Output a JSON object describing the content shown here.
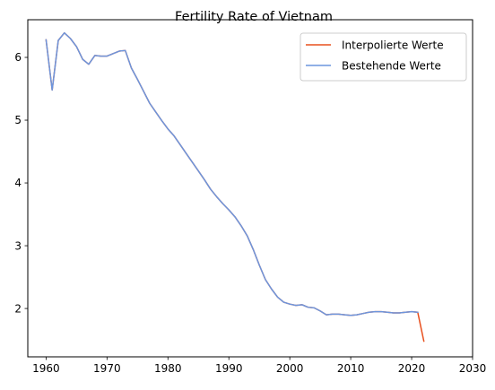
{
  "chart_data": {
    "type": "line",
    "title": "Fertility Rate of Vietnam",
    "xlabel": "",
    "ylabel": "",
    "xlim": [
      1957,
      2030
    ],
    "ylim": [
      1.23,
      6.6
    ],
    "xticks": [
      1960,
      1970,
      1980,
      1990,
      2000,
      2010,
      2020,
      2030
    ],
    "yticks": [
      2,
      3,
      4,
      5,
      6
    ],
    "grid": false,
    "legend_position": "top-right",
    "series": [
      {
        "name": "Interpolierte Werte",
        "color": "#e8501e",
        "x": [
          1960,
          1961,
          1962,
          1963,
          1964,
          1965,
          1966,
          1967,
          1968,
          1969,
          1970,
          1971,
          1972,
          1973,
          1974,
          1975,
          1976,
          1977,
          1978,
          1979,
          1980,
          1981,
          1982,
          1983,
          1984,
          1985,
          1986,
          1987,
          1988,
          1989,
          1990,
          1991,
          1992,
          1993,
          1994,
          1995,
          1996,
          1997,
          1998,
          1999,
          2000,
          2001,
          2002,
          2003,
          2004,
          2005,
          2006,
          2007,
          2008,
          2009,
          2010,
          2011,
          2012,
          2013,
          2014,
          2015,
          2016,
          2017,
          2018,
          2019,
          2020,
          2021,
          2022
        ],
        "y": [
          6.28,
          5.48,
          6.27,
          6.39,
          6.3,
          6.17,
          5.97,
          5.89,
          6.03,
          6.02,
          6.02,
          6.06,
          6.1,
          6.11,
          5.83,
          5.65,
          5.46,
          5.27,
          5.13,
          4.99,
          4.86,
          4.75,
          4.61,
          4.47,
          4.33,
          4.19,
          4.05,
          3.9,
          3.78,
          3.67,
          3.57,
          3.46,
          3.32,
          3.16,
          2.94,
          2.69,
          2.46,
          2.31,
          2.18,
          2.1,
          2.07,
          2.05,
          2.06,
          2.02,
          2.01,
          1.96,
          1.9,
          1.91,
          1.91,
          1.9,
          1.89,
          1.9,
          1.92,
          1.94,
          1.95,
          1.95,
          1.94,
          1.93,
          1.93,
          1.94,
          1.95,
          1.94,
          1.48
        ]
      },
      {
        "name": "Bestehende Werte",
        "color": "#6c96de",
        "x": [
          1960,
          1961,
          1962,
          1963,
          1964,
          1965,
          1966,
          1967,
          1968,
          1969,
          1970,
          1971,
          1972,
          1973,
          1974,
          1975,
          1976,
          1977,
          1978,
          1979,
          1980,
          1981,
          1982,
          1983,
          1984,
          1985,
          1986,
          1987,
          1988,
          1989,
          1990,
          1991,
          1992,
          1993,
          1994,
          1995,
          1996,
          1997,
          1998,
          1999,
          2000,
          2001,
          2002,
          2003,
          2004,
          2005,
          2006,
          2007,
          2008,
          2009,
          2010,
          2011,
          2012,
          2013,
          2014,
          2015,
          2016,
          2017,
          2018,
          2019,
          2020,
          2021
        ],
        "y": [
          6.28,
          5.48,
          6.27,
          6.39,
          6.3,
          6.17,
          5.97,
          5.89,
          6.03,
          6.02,
          6.02,
          6.06,
          6.1,
          6.11,
          5.83,
          5.65,
          5.46,
          5.27,
          5.13,
          4.99,
          4.86,
          4.75,
          4.61,
          4.47,
          4.33,
          4.19,
          4.05,
          3.9,
          3.78,
          3.67,
          3.57,
          3.46,
          3.32,
          3.16,
          2.94,
          2.69,
          2.46,
          2.31,
          2.18,
          2.1,
          2.07,
          2.05,
          2.06,
          2.02,
          2.01,
          1.96,
          1.9,
          1.91,
          1.91,
          1.9,
          1.89,
          1.9,
          1.92,
          1.94,
          1.95,
          1.95,
          1.94,
          1.93,
          1.93,
          1.94,
          1.95,
          1.94
        ]
      }
    ]
  }
}
